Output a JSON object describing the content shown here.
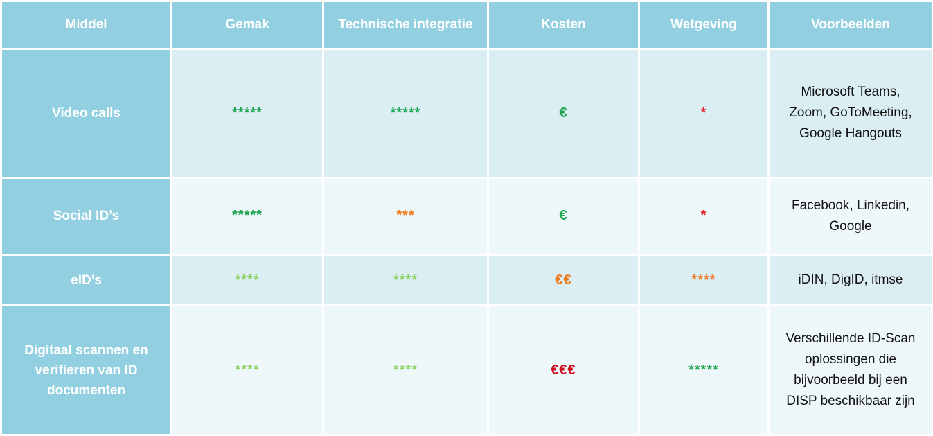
{
  "colors": {
    "header_bg": "#92d0e1",
    "row_odd_bg": "#daeef4",
    "row_even_bg": "#eef7fa",
    "green": "#1ea650",
    "lightgreen": "#8bd05a",
    "orange": "#f07a1e",
    "red": "#e5202a",
    "darkred": "#cc1020"
  },
  "headers": [
    "Middel",
    "Gemak",
    "Technische integratie",
    "Kosten",
    "Wetgeving",
    "Voorbeelden"
  ],
  "rows": [
    {
      "middel": "Video calls",
      "gemak": "*****",
      "integratie": "*****",
      "kosten": "€",
      "wetgeving": "*",
      "voorbeelden": [
        "Microsoft Teams,",
        "Zoom, GoToMeeting,",
        "Google Hangouts"
      ]
    },
    {
      "middel": "Social ID’s",
      "gemak": "*****",
      "integratie": "***",
      "kosten": "€",
      "wetgeving": "*",
      "voorbeelden": [
        "Facebook, Linkedin,",
        "Google"
      ]
    },
    {
      "middel": "eID’s",
      "gemak": "****",
      "integratie": "****",
      "kosten": "€€",
      "wetgeving": "****",
      "voorbeelden": [
        "iDIN, DigID, itmse"
      ]
    },
    {
      "middel": [
        "Digitaal scannen en",
        "verifieren van ID",
        "documenten"
      ],
      "gemak": "****",
      "integratie": "****",
      "kosten": "€€€",
      "wetgeving": "*****",
      "voorbeelden": [
        "Verschillende ID-Scan",
        "oplossingen die",
        "bijvoorbeeld bij een",
        "DISP beschikbaar zijn"
      ]
    }
  ]
}
